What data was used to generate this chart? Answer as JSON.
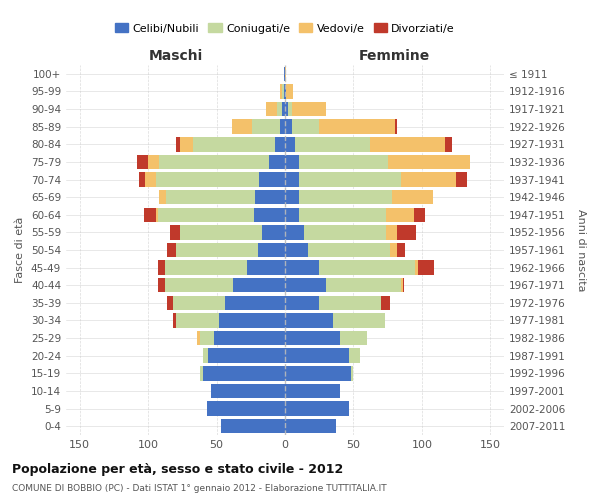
{
  "age_groups": [
    "0-4",
    "5-9",
    "10-14",
    "15-19",
    "20-24",
    "25-29",
    "30-34",
    "35-39",
    "40-44",
    "45-49",
    "50-54",
    "55-59",
    "60-64",
    "65-69",
    "70-74",
    "75-79",
    "80-84",
    "85-89",
    "90-94",
    "95-99",
    "100+"
  ],
  "birth_years": [
    "2007-2011",
    "2002-2006",
    "1997-2001",
    "1992-1996",
    "1987-1991",
    "1982-1986",
    "1977-1981",
    "1972-1976",
    "1967-1971",
    "1962-1966",
    "1957-1961",
    "1952-1956",
    "1947-1951",
    "1942-1946",
    "1937-1941",
    "1932-1936",
    "1927-1931",
    "1922-1926",
    "1917-1921",
    "1912-1916",
    "≤ 1911"
  ],
  "colors": {
    "celibi": "#4472C4",
    "coniugati": "#c5d9a0",
    "vedovi": "#f4c16a",
    "divorziati": "#c0392b"
  },
  "maschi": {
    "celibi": [
      47,
      57,
      54,
      60,
      56,
      52,
      48,
      44,
      38,
      28,
      20,
      17,
      23,
      22,
      19,
      12,
      7,
      4,
      2,
      1,
      1
    ],
    "coniugati": [
      0,
      0,
      0,
      2,
      4,
      10,
      32,
      38,
      50,
      60,
      60,
      60,
      70,
      65,
      75,
      80,
      60,
      20,
      4,
      1,
      0
    ],
    "vedovi": [
      0,
      0,
      0,
      0,
      0,
      2,
      0,
      0,
      0,
      0,
      0,
      0,
      1,
      5,
      8,
      8,
      10,
      15,
      8,
      2,
      0
    ],
    "divorziati": [
      0,
      0,
      0,
      0,
      0,
      0,
      2,
      4,
      5,
      5,
      6,
      7,
      9,
      0,
      5,
      8,
      3,
      0,
      0,
      0,
      0
    ]
  },
  "femmine": {
    "celibi": [
      37,
      47,
      40,
      48,
      47,
      40,
      35,
      25,
      30,
      25,
      17,
      14,
      10,
      10,
      10,
      10,
      7,
      5,
      2,
      1,
      0
    ],
    "coniugati": [
      0,
      0,
      0,
      2,
      8,
      20,
      38,
      45,
      55,
      70,
      60,
      60,
      64,
      68,
      75,
      65,
      55,
      20,
      3,
      0,
      0
    ],
    "vedovi": [
      0,
      0,
      0,
      0,
      0,
      0,
      0,
      0,
      1,
      2,
      5,
      8,
      20,
      30,
      40,
      60,
      55,
      55,
      25,
      5,
      1
    ],
    "divorziati": [
      0,
      0,
      0,
      0,
      0,
      0,
      0,
      7,
      1,
      12,
      6,
      14,
      8,
      0,
      8,
      0,
      5,
      2,
      0,
      0,
      0
    ]
  },
  "title": "Popolazione per età, sesso e stato civile - 2012",
  "subtitle": "COMUNE DI BOBBIO (PC) - Dati ISTAT 1° gennaio 2012 - Elaborazione TUTTITALIA.IT",
  "xlabel_maschi": "Maschi",
  "xlabel_femmine": "Femmine",
  "ylabel": "Fasce di età",
  "ylabel_right": "Anni di nascita",
  "xlim": 160,
  "background_color": "#ffffff",
  "grid_color": "#cccccc"
}
